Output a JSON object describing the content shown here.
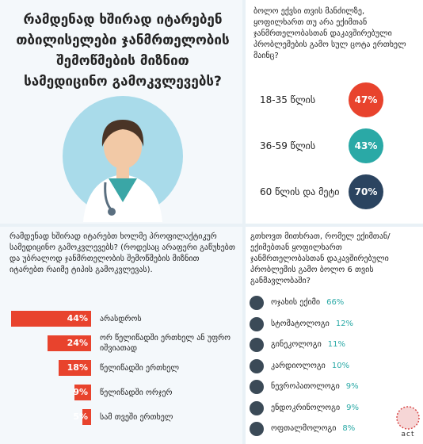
{
  "title": "რამდენად ხშირად იტარებენ თბილისელები ჯანმრთელობის შემოწმების მიზნით სამედიცინო გამოკვლევებს?",
  "age_panel": {
    "question": "ბოლო ექვსი თვის მანძილზე, ყოფილხართ თუ არა ექიმთან ჯანმრთელობასთან დაკავშირებული პრობლემების გამო სულ ცოტა ერთხელ მაინც?",
    "rows": [
      {
        "age": "18-35 წლის",
        "share": "47%",
        "color": "#e8432d"
      },
      {
        "age": "36-59 წლის",
        "share": "43%",
        "color": "#2aa9a6"
      },
      {
        "age": "60 წლის და მეტი",
        "share": "70%",
        "color": "#2b4460"
      }
    ]
  },
  "frequency_panel": {
    "question": "რამდენად ხშირად იტარებთ ხოლმე პროფილაქტიკურ სამედიცინო გამოკვლევებს? (როდესაც არაფერი გაწუხებთ და უბრალოდ ჯანმრთელობის შემოწმების მიზნით იტარებთ რაიმე ტიპის გამოკვლევას).",
    "color": "#e8432d",
    "bars": [
      {
        "value": 44,
        "label": "44%",
        "text": "არასდროს"
      },
      {
        "value": 24,
        "label": "24%",
        "text": "ორ წელიწადში ერთხელ ან უფრო იშვიათად"
      },
      {
        "value": 18,
        "label": "18%",
        "text": "წელიწადში ერთხელ"
      },
      {
        "value": 9,
        "label": "9%",
        "text": "წელიწადში ორჯერ"
      },
      {
        "value": 5,
        "label": "5%",
        "text": "სამ თვეში ერთხელ"
      }
    ]
  },
  "doctor_panel": {
    "question": "გთხოვთ მითხრათ, რომელ ექიმთან/ექიმებთან ყოფილხართ ჯანმრთელობასთან დაკავშირებული პრობლემის გამო ბოლო 6 თვის განმავლობაში?",
    "items": [
      {
        "name": "ოჯახის ექიმი",
        "share": "66%"
      },
      {
        "name": "სტომატოლოგი",
        "share": "12%"
      },
      {
        "name": "გინეკოლოგი",
        "share": "11%"
      },
      {
        "name": "კარდიოლოგი",
        "share": "10%"
      },
      {
        "name": "ნევროპათოლოგი",
        "share": "9%"
      },
      {
        "name": "ენდოკრინოლოგი",
        "share": "9%"
      },
      {
        "name": "ოფთალმოლოგი",
        "share": "8%"
      }
    ]
  },
  "logo": "act"
}
